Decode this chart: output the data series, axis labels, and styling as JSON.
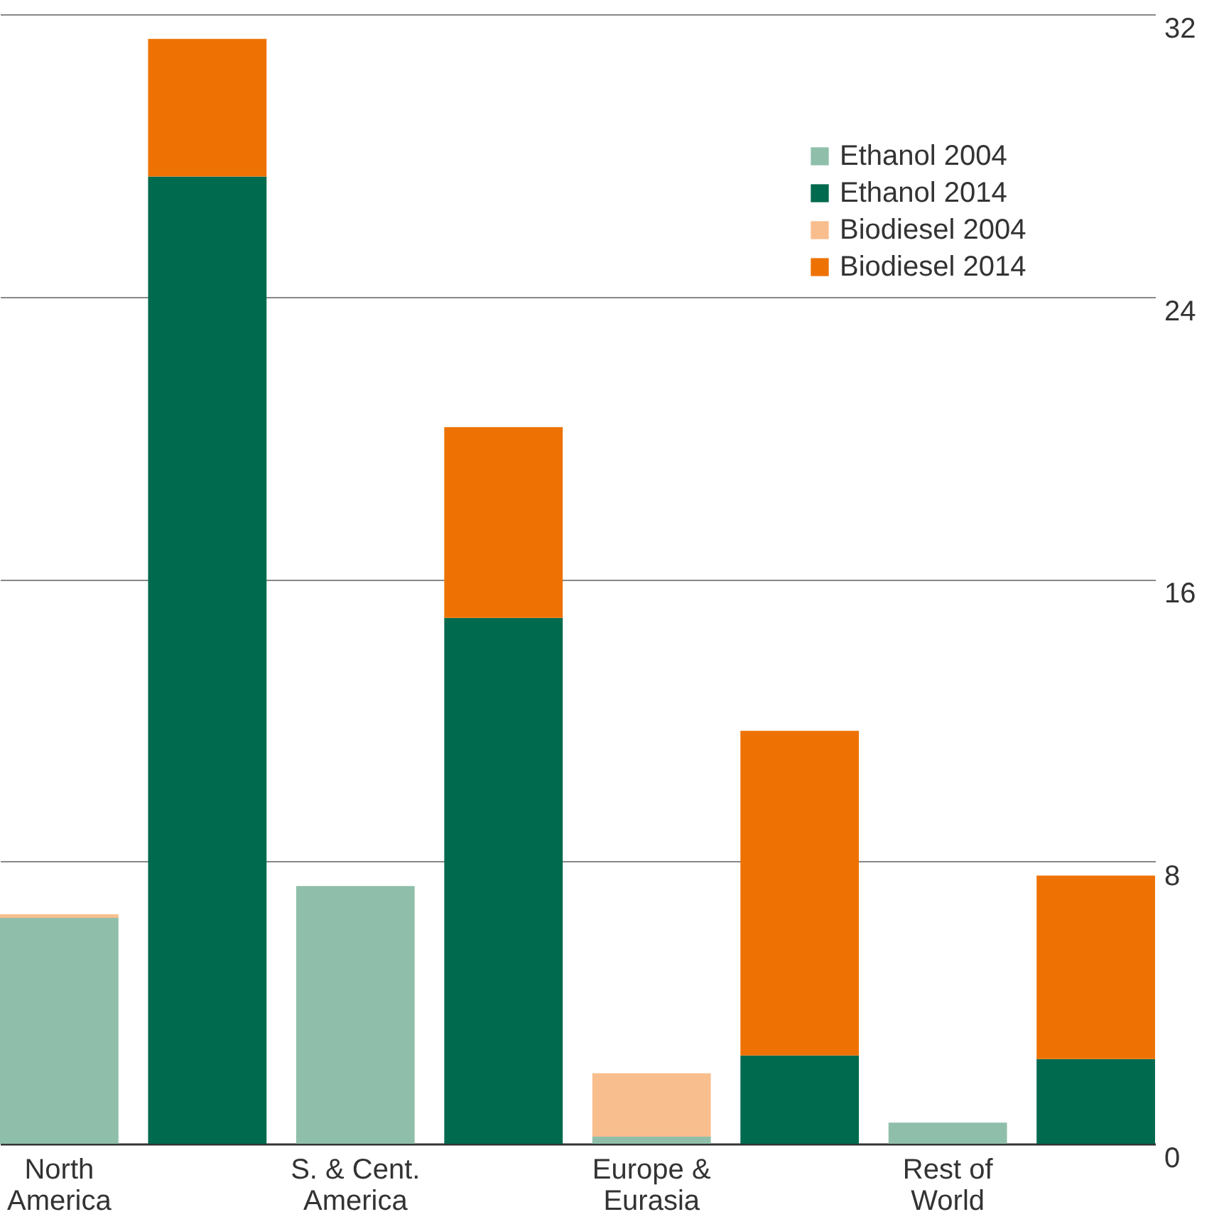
{
  "chart_data": {
    "type": "bar",
    "stacked": true,
    "categories": [
      "North America",
      null,
      "S. & Cent. America",
      null,
      "Europe & Eurasia",
      null,
      "Rest of World",
      null
    ],
    "series": [
      {
        "name": "Ethanol 2004",
        "color": "#8fbfaa",
        "values": [
          6.4,
          null,
          7.3,
          null,
          0.2,
          null,
          0.6,
          null
        ]
      },
      {
        "name": "Ethanol 2014",
        "color": "#006a4e",
        "values": [
          null,
          27.4,
          null,
          14.9,
          null,
          2.5,
          null,
          2.4
        ]
      },
      {
        "name": "Biodiesel 2004",
        "color": "#f9be8e",
        "values": [
          0.1,
          null,
          0,
          null,
          1.8,
          null,
          0,
          null
        ]
      },
      {
        "name": "Biodiesel 2014",
        "color": "#ee7203",
        "values": [
          null,
          3.9,
          null,
          5.4,
          null,
          9.2,
          null,
          5.2
        ]
      }
    ],
    "ylim": [
      0,
      32
    ],
    "yticks": [
      0,
      8,
      16,
      24,
      32
    ],
    "grid": "y",
    "legend": "top right"
  }
}
